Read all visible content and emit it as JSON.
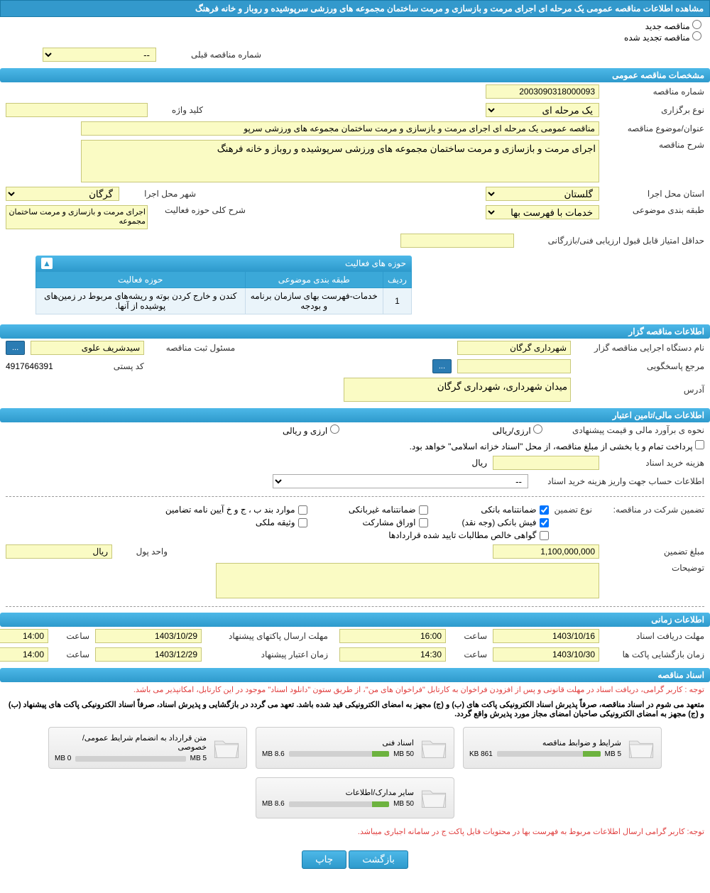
{
  "pageTitle": "مشاهده اطلاعات مناقصه عمومی یک مرحله ای اجرای مرمت و بازسازی و مرمت ساختمان مجموعه های ورزشی سرپوشیده و روباز و خانه فرهنگ",
  "radios": {
    "new": "مناقصه جدید",
    "renewed": "مناقصه تجدید شده"
  },
  "prevTenderLabel": "شماره مناقصه قبلی",
  "prevTenderValue": "--",
  "sections": {
    "general": "مشخصات مناقصه عمومی",
    "organizer": "اطلاعات مناقصه گزار",
    "financial": "اطلاعات مالی/تامین اعتبار",
    "timing": "اطلاعات زمانی",
    "docs": "اسناد مناقصه"
  },
  "general": {
    "tenderNoLabel": "شماره مناقصه",
    "tenderNo": "2003090318000093",
    "holdTypeLabel": "نوع برگزاری",
    "holdType": "یک مرحله ای",
    "keywordLabel": "کلید واژه",
    "keyword": "",
    "titleLabel": "عنوان/موضوع مناقصه",
    "title": "مناقصه عمومی یک مرحله ای اجرای مرمت و بازسازی و مرمت ساختمان مجموعه های ورزشی سرپو",
    "descLabel": "شرح مناقصه",
    "desc": "اجرای مرمت و بازسازی و مرمت ساختمان مجموعه های ورزشی سرپوشیده و روباز و خانه فرهنگ",
    "provinceLabel": "استان محل اجرا",
    "province": "گلستان",
    "cityLabel": "شهر محل اجرا",
    "city": "گرگان",
    "categoryLabel": "طبقه بندی موضوعی",
    "category": "خدمات با فهرست بها",
    "activityScopeLabel": "شرح کلی حوزه فعالیت",
    "activityScope": "اجرای مرمت و بازسازی و مرمت ساختمان مجموعه",
    "minScoreLabel": "حداقل امتیاز قابل قبول ارزیابی فنی/بازرگانی",
    "minScore": ""
  },
  "activityTable": {
    "title": "حوزه های فعالیت",
    "headers": {
      "row": "ردیف",
      "category": "طبقه بندی موضوعی",
      "scope": "حوزه فعالیت"
    },
    "rows": [
      {
        "row": "1",
        "category": "خدمات-فهرست بهای سازمان برنامه و بودجه",
        "scope": "کندن و خارج کردن بوته و ریشه‌های مربوط در زمین‌های پوشیده از آنها."
      }
    ]
  },
  "organizer": {
    "execLabel": "نام دستگاه اجرایی مناقصه گزار",
    "exec": "شهرداری گرگان",
    "regLabel": "مسئول ثبت مناقصه",
    "reg": "سیدشریف علوی",
    "moreBtn": "...",
    "respLabel": "مرجع پاسخگویی",
    "resp": "",
    "postalLabel": "کد پستی",
    "postal": "4917646391",
    "addrLabel": "آدرس",
    "addr": "میدان شهرداری، شهرداری گرگان"
  },
  "financial": {
    "estimateLabel": "نحوه ی برآورد مالی و قیمت پیشنهادی",
    "currencyForeign": "ارزی/ریالی",
    "currencyBoth": "ارزی و ریالی",
    "paymentNote": "پرداخت تمام و یا بخشی از مبلغ مناقصه، از محل \"اسناد خزانه اسلامی\" خواهد بود.",
    "buyDocsLabel": "هزینه خرید اسناد",
    "currencyLabel": "ریال",
    "accountLabel": "اطلاعات حساب جهت واریز هزینه خرید اسناد",
    "accountValue": "--",
    "guaranteeLabel": "تضمین شرکت در مناقصه:",
    "guaranteeTypeLabel": "نوع تضمین",
    "chk": {
      "bank": "ضمانتنامه بانکی",
      "nonbank": "ضمانتنامه غیربانکی",
      "regs": "موارد بند ب ، ج و خ آیین نامه تضامین",
      "cash": "فیش بانکی (وجه نقد)",
      "securities": "اوراق مشارکت",
      "property": "وثیقه ملکی",
      "cert": "گواهی خالص مطالبات تایید شده قراردادها"
    },
    "amountLabel": "مبلغ تضمین",
    "amount": "1,100,000,000",
    "unitLabel": "واحد پول",
    "unit": "ریال",
    "notesLabel": "توضیحات"
  },
  "timing": {
    "docDeadlineLabel": "مهلت دریافت اسناد",
    "docDeadlineDate": "1403/10/16",
    "docDeadlineTime": "16:00",
    "envelopeDeadlineLabel": "مهلت ارسال پاکتهای پیشنهاد",
    "envelopeDeadlineDate": "1403/10/29",
    "envelopeDeadlineTime": "14:00",
    "openingLabel": "زمان بازگشایی پاکت ها",
    "openingDate": "1403/10/30",
    "openingTime": "14:30",
    "validityLabel": "زمان اعتبار پیشنهاد",
    "validityDate": "1403/12/29",
    "validityTime": "14:00",
    "hourLabel": "ساعت"
  },
  "docsSection": {
    "notice1": "توجه : کاربر گرامی، دریافت اسناد در مهلت قانونی و پس از افزودن فراخوان به کارتابل \"فراخوان های من\"، از طریق ستون \"دانلود اسناد\" موجود در این کارتابل، امکانپذیر می باشد.",
    "notice2": "متعهد می شوم در اسناد مناقصه، صرفاً پذیرش اسناد الکترونیکی پاکت های (ب) و (ج) مجهز به امضای الکترونیکی قید شده باشد. تعهد می گردد در بازگشایی و پذیرش اسناد، صرفاً اسناد الکترونیکی پاکت های پیشنهاد (ب) و (ج) مجهز به امضای الکترونیکی صاحبان امضای مجاز مورد پذیرش واقع گردد.",
    "files": [
      {
        "title": "شرایط و ضوابط مناقصه",
        "used": "861 KB",
        "max": "5 MB",
        "pct": 17
      },
      {
        "title": "اسناد فنی",
        "used": "8.6 MB",
        "max": "50 MB",
        "pct": 17
      },
      {
        "title": "متن قرارداد به انضمام شرایط عمومی/خصوصی",
        "used": "0 MB",
        "max": "5 MB",
        "pct": 0
      },
      {
        "title": "سایر مدارک/اطلاعات",
        "used": "8.6 MB",
        "max": "50 MB",
        "pct": 17
      }
    ],
    "notice3": "توجه: کاربر گرامی ارسال اطلاعات مربوط به فهرست بها در محتویات فایل پاکت ج در سامانه اجباری میباشد."
  },
  "buttons": {
    "back": "بازگشت",
    "print": "چاپ"
  }
}
